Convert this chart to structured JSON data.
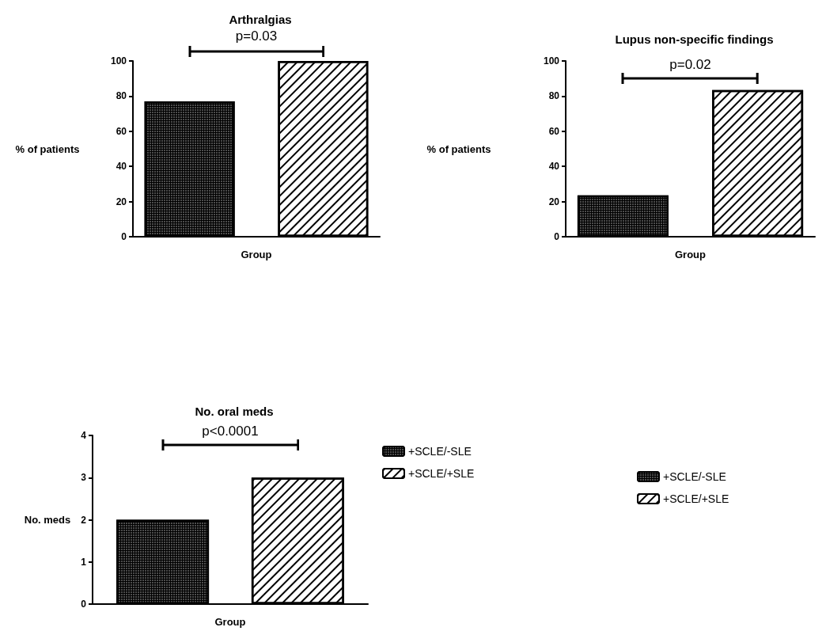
{
  "chart_data": [
    {
      "type": "bar",
      "title": "Arthralgias",
      "xlabel": "Group",
      "ylabel": "% of patients",
      "categories": [
        null
      ],
      "series": [
        {
          "color": "#000000",
          "values": [
            77
          ]
        },
        {
          "color": "#ffffff",
          "values": [
            100
          ]
        }
      ],
      "ylim": [
        0,
        100
      ],
      "yticks": [
        0,
        20,
        40,
        60,
        80,
        100
      ],
      "grid": false,
      "legend": false,
      "annotations": [
        "p=0.03"
      ]
    },
    {
      "type": "bar",
      "title": "Lupus non-specific findings",
      "xlabel": "Group",
      "ylabel": "% of patients",
      "categories": [
        null
      ],
      "series": [
        {
          "name": "+SCLE/-SLE",
          "color": "#000000",
          "values": [
            23.5
          ]
        },
        {
          "name": "+SCLE/+SLE",
          "color": "#ffffff",
          "values": [
            83.5
          ]
        }
      ],
      "ylim": [
        0,
        100
      ],
      "yticks": [
        0,
        20,
        40,
        60,
        80,
        100
      ],
      "grid": false,
      "legend": "bottom right",
      "annotations": [
        "p=0.02"
      ]
    },
    {
      "type": "bar",
      "title": "No. oral meds",
      "xlabel": "Group",
      "ylabel": "No. meds",
      "categories": [
        null
      ],
      "series": [
        {
          "name": "+SCLE/-SLE",
          "color": "#000000",
          "values": [
            2
          ]
        },
        {
          "name": "+SCLE/+SLE",
          "color": "#ffffff",
          "values": [
            3
          ]
        }
      ],
      "ylim": [
        0,
        4
      ],
      "yticks": [
        0,
        1,
        2,
        3,
        4
      ],
      "grid": false,
      "legend": "top right",
      "annotations": [
        "p<0.0001"
      ]
    }
  ]
}
